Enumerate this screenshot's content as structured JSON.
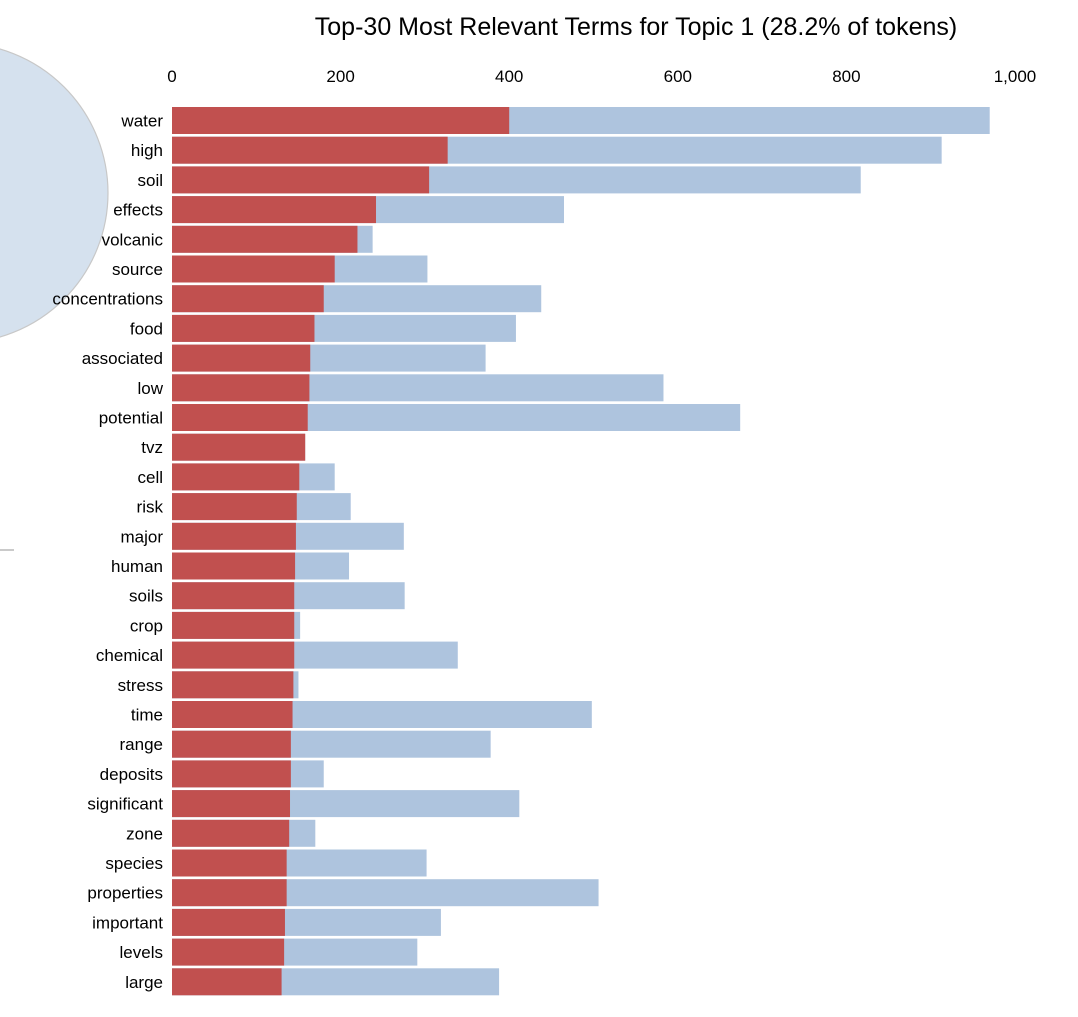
{
  "chart_data": {
    "type": "bar",
    "orientation": "horizontal",
    "title": "Top-30 Most Relevant Terms for Topic 1 (28.2% of tokens)",
    "xlim": [
      0,
      1000
    ],
    "x_ticks": [
      "0",
      "200",
      "400",
      "600",
      "800",
      "1,000"
    ],
    "x_tick_values": [
      0,
      200,
      400,
      600,
      800,
      1000
    ],
    "categories": [
      "water",
      "high",
      "soil",
      "effects",
      "volcanic",
      "source",
      "concentrations",
      "food",
      "associated",
      "low",
      "potential",
      "tvz",
      "cell",
      "risk",
      "major",
      "human",
      "soils",
      "crop",
      "chemical",
      "stress",
      "time",
      "range",
      "deposits",
      "significant",
      "zone",
      "species",
      "properties",
      "important",
      "levels",
      "large"
    ],
    "series": [
      {
        "color": "#aec4de",
        "values": [
          970,
          913,
          817,
          465,
          238,
          303,
          438,
          408,
          372,
          583,
          674,
          158,
          193,
          212,
          275,
          210,
          276,
          152,
          339,
          150,
          498,
          378,
          180,
          412,
          170,
          302,
          506,
          319,
          291,
          388
        ]
      },
      {
        "color": "#c1504f",
        "values": [
          400,
          327,
          305,
          242,
          220,
          193,
          180,
          169,
          164,
          163,
          161,
          158,
          151,
          148,
          147,
          146,
          145,
          145,
          145,
          144,
          143,
          141,
          141,
          140,
          139,
          136,
          136,
          134,
          133,
          130
        ]
      }
    ],
    "grid": false,
    "legend": "none"
  },
  "colors": {
    "overall_bar": "#aec4de",
    "topic_bar": "#c1504f",
    "circle_fill": "#d5e1ee",
    "circle_stroke": "#c8c8c8"
  }
}
